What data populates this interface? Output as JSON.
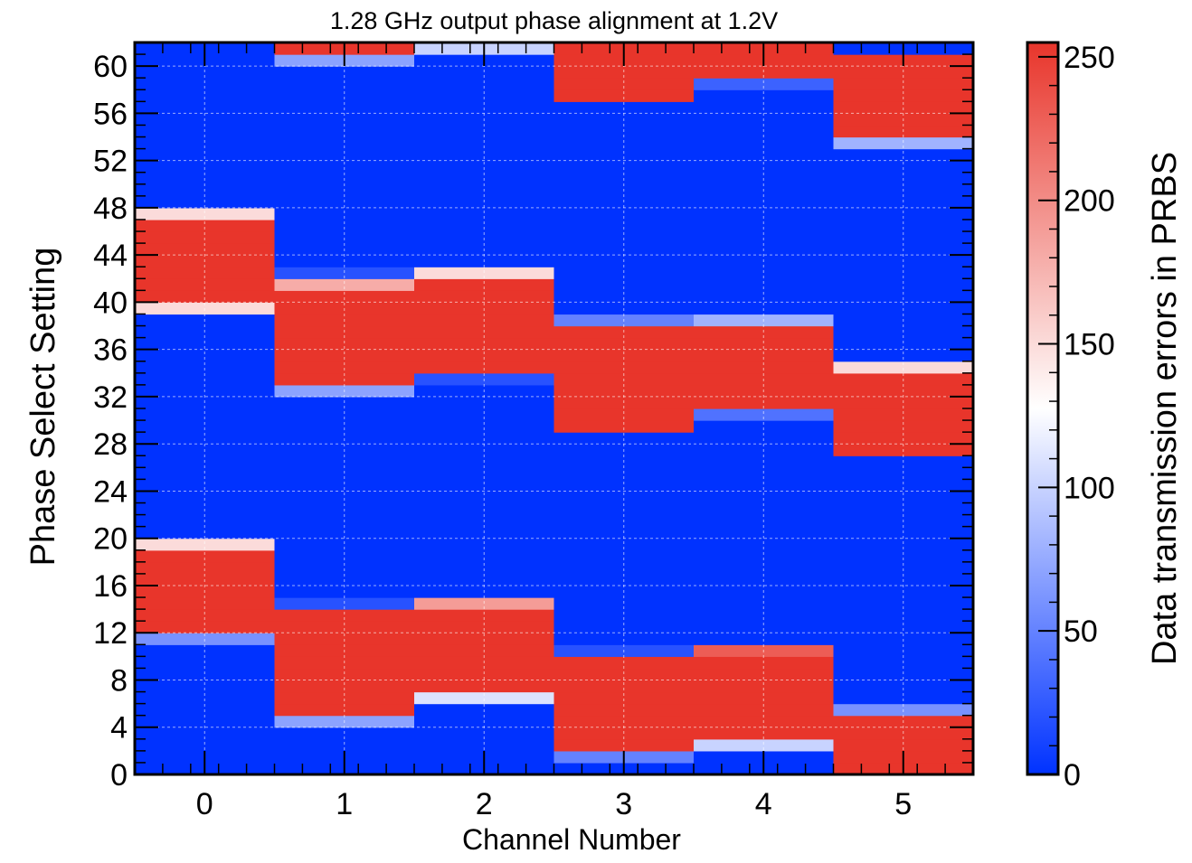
{
  "chart_data": {
    "type": "heatmap",
    "title": "1.28 GHz output phase alignment at 1.2V",
    "xlabel": "Channel Number",
    "ylabel": "Phase Select Setting",
    "zlabel": "Data transmission errors in PRBS",
    "x_categories": [
      "0",
      "1",
      "2",
      "3",
      "4",
      "5"
    ],
    "y_range": [
      0,
      62
    ],
    "y_ticks": [
      "0",
      "4",
      "8",
      "12",
      "16",
      "20",
      "24",
      "28",
      "32",
      "36",
      "40",
      "44",
      "48",
      "52",
      "56",
      "60"
    ],
    "z_range": [
      0,
      255
    ],
    "z_ticks": [
      "0",
      "50",
      "100",
      "150",
      "200",
      "250"
    ],
    "colorscale": [
      "#0032ff",
      "#ffffff",
      "#e8352b"
    ],
    "grid": true,
    "legend_position": "right colorbar",
    "values": [
      [
        0,
        0,
        0,
        0,
        0,
        0,
        0,
        0,
        0,
        0,
        0,
        60,
        255,
        255,
        255,
        255,
        255,
        255,
        255,
        150,
        0,
        0,
        0,
        0,
        0,
        0,
        0,
        0,
        0,
        0,
        0,
        0,
        0,
        0,
        0,
        0,
        0,
        0,
        0,
        150,
        255,
        255,
        255,
        255,
        255,
        255,
        255,
        150,
        0,
        0,
        0,
        0,
        0,
        0,
        0,
        0,
        0,
        0,
        0,
        0,
        0,
        0
      ],
      [
        0,
        0,
        0,
        0,
        70,
        255,
        255,
        255,
        255,
        255,
        255,
        255,
        255,
        255,
        20,
        0,
        0,
        0,
        0,
        0,
        0,
        0,
        0,
        0,
        0,
        0,
        0,
        0,
        0,
        0,
        0,
        0,
        70,
        255,
        255,
        255,
        255,
        255,
        255,
        255,
        255,
        180,
        20,
        0,
        0,
        0,
        0,
        0,
        0,
        0,
        0,
        0,
        0,
        0,
        0,
        0,
        0,
        0,
        0,
        0,
        70,
        255
      ],
      [
        0,
        0,
        0,
        0,
        0,
        0,
        110,
        255,
        255,
        255,
        255,
        255,
        255,
        255,
        190,
        0,
        0,
        0,
        0,
        0,
        0,
        0,
        0,
        0,
        0,
        0,
        0,
        0,
        0,
        0,
        0,
        0,
        0,
        20,
        255,
        255,
        255,
        255,
        255,
        255,
        255,
        255,
        150,
        0,
        0,
        0,
        0,
        0,
        0,
        0,
        0,
        0,
        0,
        0,
        0,
        0,
        0,
        0,
        0,
        0,
        0,
        100
      ],
      [
        0,
        50,
        255,
        255,
        255,
        255,
        255,
        255,
        255,
        255,
        20,
        0,
        0,
        0,
        0,
        0,
        0,
        0,
        0,
        0,
        0,
        0,
        0,
        0,
        0,
        0,
        0,
        0,
        0,
        255,
        255,
        255,
        255,
        255,
        255,
        255,
        255,
        255,
        50,
        0,
        0,
        0,
        0,
        0,
        0,
        0,
        0,
        0,
        0,
        0,
        0,
        0,
        0,
        0,
        0,
        0,
        0,
        255,
        255,
        255,
        255,
        255
      ],
      [
        0,
        0,
        100,
        255,
        255,
        255,
        255,
        255,
        255,
        255,
        230,
        0,
        0,
        0,
        0,
        0,
        0,
        0,
        0,
        0,
        0,
        0,
        0,
        0,
        0,
        0,
        0,
        0,
        0,
        0,
        40,
        255,
        255,
        255,
        255,
        255,
        255,
        255,
        80,
        0,
        0,
        0,
        0,
        0,
        0,
        0,
        0,
        0,
        0,
        0,
        0,
        0,
        0,
        0,
        0,
        0,
        0,
        0,
        30,
        255,
        255,
        255
      ],
      [
        255,
        255,
        255,
        255,
        255,
        60,
        0,
        0,
        0,
        0,
        0,
        0,
        0,
        0,
        0,
        0,
        0,
        0,
        0,
        0,
        0,
        0,
        0,
        0,
        0,
        0,
        0,
        255,
        255,
        255,
        255,
        255,
        255,
        255,
        150,
        0,
        0,
        0,
        0,
        0,
        0,
        0,
        0,
        0,
        0,
        0,
        0,
        0,
        0,
        0,
        0,
        0,
        0,
        80,
        255,
        255,
        255,
        255,
        255,
        255,
        255,
        0
      ]
    ]
  }
}
